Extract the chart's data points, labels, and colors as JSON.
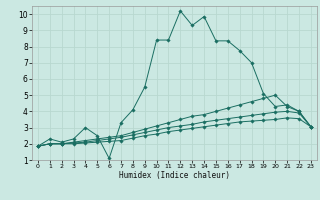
{
  "xlabel": "Humidex (Indice chaleur)",
  "ylabel": "",
  "bg_color": "#cbe8e2",
  "grid_color": "#b8d8d0",
  "line_color": "#1a6e62",
  "xlim": [
    -0.5,
    23.5
  ],
  "ylim": [
    1,
    10.5
  ],
  "xticks": [
    0,
    1,
    2,
    3,
    4,
    5,
    6,
    7,
    8,
    9,
    10,
    11,
    12,
    13,
    14,
    15,
    16,
    17,
    18,
    19,
    20,
    21,
    22,
    23
  ],
  "yticks": [
    1,
    2,
    3,
    4,
    5,
    6,
    7,
    8,
    9,
    10
  ],
  "line1_x": [
    0,
    1,
    2,
    3,
    4,
    5,
    6,
    7,
    8,
    9,
    10,
    11,
    12,
    13,
    14,
    15,
    16,
    17,
    18,
    19,
    20,
    21,
    22,
    23
  ],
  "line1_y": [
    1.85,
    2.3,
    2.1,
    2.3,
    3.0,
    2.5,
    1.1,
    3.3,
    4.1,
    5.5,
    8.4,
    8.4,
    10.2,
    9.3,
    9.85,
    8.35,
    8.35,
    7.75,
    7.0,
    5.1,
    4.3,
    4.4,
    4.0,
    3.05
  ],
  "line2_x": [
    0,
    1,
    2,
    3,
    4,
    5,
    6,
    7,
    8,
    9,
    10,
    11,
    12,
    13,
    14,
    15,
    16,
    17,
    18,
    19,
    20,
    21,
    22,
    23
  ],
  "line2_y": [
    1.85,
    2.0,
    2.0,
    2.1,
    2.2,
    2.3,
    2.4,
    2.5,
    2.7,
    2.9,
    3.1,
    3.3,
    3.5,
    3.7,
    3.8,
    4.0,
    4.2,
    4.4,
    4.6,
    4.8,
    5.0,
    4.3,
    4.0,
    3.05
  ],
  "line3_x": [
    0,
    1,
    2,
    3,
    4,
    5,
    6,
    7,
    8,
    9,
    10,
    11,
    12,
    13,
    14,
    15,
    16,
    17,
    18,
    19,
    20,
    21,
    22,
    23
  ],
  "line3_y": [
    1.85,
    2.0,
    2.0,
    2.05,
    2.1,
    2.2,
    2.3,
    2.4,
    2.55,
    2.7,
    2.85,
    3.0,
    3.1,
    3.2,
    3.35,
    3.45,
    3.55,
    3.65,
    3.75,
    3.85,
    3.95,
    4.0,
    3.9,
    3.05
  ],
  "line4_x": [
    0,
    1,
    2,
    3,
    4,
    5,
    6,
    7,
    8,
    9,
    10,
    11,
    12,
    13,
    14,
    15,
    16,
    17,
    18,
    19,
    20,
    21,
    22,
    23
  ],
  "line4_y": [
    1.85,
    2.0,
    2.0,
    2.0,
    2.05,
    2.1,
    2.15,
    2.2,
    2.35,
    2.5,
    2.6,
    2.75,
    2.85,
    2.95,
    3.05,
    3.15,
    3.25,
    3.35,
    3.4,
    3.45,
    3.5,
    3.6,
    3.55,
    3.05
  ]
}
